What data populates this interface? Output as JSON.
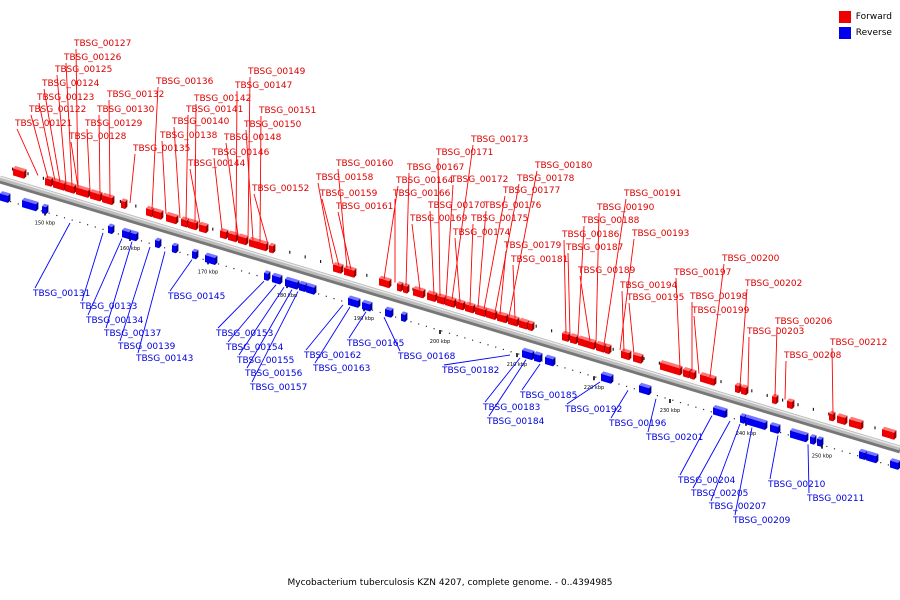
{
  "legend": {
    "forward_label": "Forward",
    "reverse_label": "Reverse",
    "forward_color": "#ee0000",
    "reverse_color": "#0000ee"
  },
  "caption": "Mycobacterium tuberculosis KZN 4207, complete genome. - 0..4394985",
  "scale_labels": [
    "150 kbp",
    "160 kbp",
    "170 kbp",
    "180 kbp",
    "190 kbp",
    "200 kbp",
    "210 kbp",
    "220 kbp",
    "230 kbp",
    "240 kbp",
    "250 kbp"
  ],
  "forward_genes": [
    "TBSG_00121",
    "TBSG_00122",
    "TBSG_00123",
    "TBSG_00124",
    "TBSG_00125",
    "TBSG_00126",
    "TBSG_00127",
    "TBSG_00128",
    "TBSG_00129",
    "TBSG_00130",
    "TBSG_00132",
    "TBSG_00135",
    "TBSG_00136",
    "TBSG_00138",
    "TBSG_00140",
    "TBSG_00141",
    "TBSG_00142",
    "TBSG_00144",
    "TBSG_00146",
    "TBSG_00147",
    "TBSG_00148",
    "TBSG_00149",
    "TBSG_00150",
    "TBSG_00151",
    "TBSG_00152",
    "TBSG_00158",
    "TBSG_00159",
    "TBSG_00160",
    "TBSG_00161",
    "TBSG_00164",
    "TBSG_00166",
    "TBSG_00167",
    "TBSG_00169",
    "TBSG_00170",
    "TBSG_00171",
    "TBSG_00172",
    "TBSG_00173",
    "TBSG_00174",
    "TBSG_00175",
    "TBSG_00176",
    "TBSG_00177",
    "TBSG_00178",
    "TBSG_00179",
    "TBSG_00180",
    "TBSG_00181",
    "TBSG_00186",
    "TBSG_00187",
    "TBSG_00188",
    "TBSG_00189",
    "TBSG_00190",
    "TBSG_00191",
    "TBSG_00193",
    "TBSG_00194",
    "TBSG_00195",
    "TBSG_00197",
    "TBSG_00198",
    "TBSG_00199",
    "TBSG_00200",
    "TBSG_00202",
    "TBSG_00203",
    "TBSG_00206",
    "TBSG_00208",
    "TBSG_00212"
  ],
  "reverse_genes": [
    "TBSG_00131",
    "TBSG_00133",
    "TBSG_00134",
    "TBSG_00137",
    "TBSG_00139",
    "TBSG_00143",
    "TBSG_00145",
    "TBSG_00153",
    "TBSG_00154",
    "TBSG_00155",
    "TBSG_00156",
    "TBSG_00157",
    "TBSG_00162",
    "TBSG_00163",
    "TBSG_00165",
    "TBSG_00168",
    "TBSG_00182",
    "TBSG_00183",
    "TBSG_00184",
    "TBSG_00185",
    "TBSG_00192",
    "TBSG_00196",
    "TBSG_00201",
    "TBSG_00204",
    "TBSG_00205",
    "TBSG_00207",
    "TBSG_00209",
    "TBSG_00210",
    "TBSG_00211"
  ]
}
